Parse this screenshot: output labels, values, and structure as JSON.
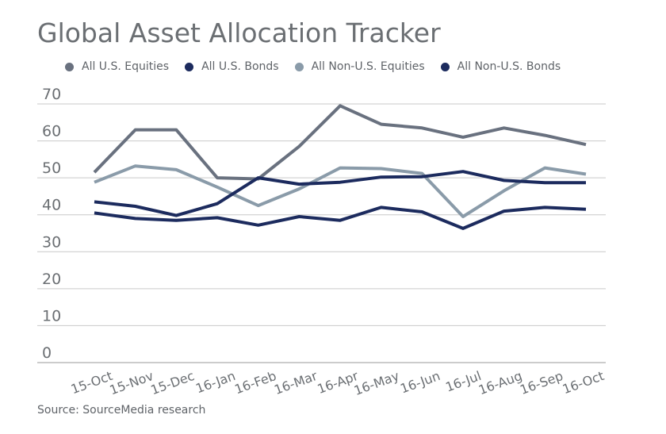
{
  "chart_data": {
    "type": "line",
    "title": "Global Asset Allocation Tracker",
    "source": "Source: SourceMedia research",
    "categories": [
      "15-Oct",
      "15-Nov",
      "15-Dec",
      "16-Jan",
      "16-Feb",
      "16-Mar",
      "16-Apr",
      "16-May",
      "16-Jun",
      "16-Jul",
      "16-Aug",
      "16-Sep",
      "16-Oct"
    ],
    "ylim": [
      0,
      70
    ],
    "yticks": [
      0,
      10,
      20,
      30,
      40,
      50,
      60,
      70
    ],
    "grid": true,
    "legend_position": "top",
    "series": [
      {
        "name": "All U.S. Equities",
        "color": "#69717f",
        "values": [
          51.5,
          63,
          63,
          50,
          49.7,
          58.5,
          69.5,
          64.5,
          63.5,
          61,
          63.5,
          61.5,
          59
        ]
      },
      {
        "name": "All U.S. Bonds",
        "color": "#1c2b5e",
        "values": [
          40.5,
          39,
          38.5,
          39.2,
          37.2,
          39.5,
          38.5,
          42,
          40.8,
          36.3,
          41,
          42,
          41.5
        ]
      },
      {
        "name": "All Non-U.S. Equities",
        "color": "#8a9ba9",
        "values": [
          48.8,
          53.2,
          52.2,
          47.5,
          42.5,
          47,
          52.7,
          52.5,
          51.2,
          39.5,
          46.5,
          52.7,
          51
        ]
      },
      {
        "name": "All Non-U.S. Bonds",
        "color": "#1c2b5e",
        "values": [
          43.5,
          42.3,
          39.8,
          43,
          50,
          48.3,
          48.8,
          50.2,
          50.3,
          51.7,
          49.3,
          48.7,
          48.7
        ]
      }
    ]
  }
}
